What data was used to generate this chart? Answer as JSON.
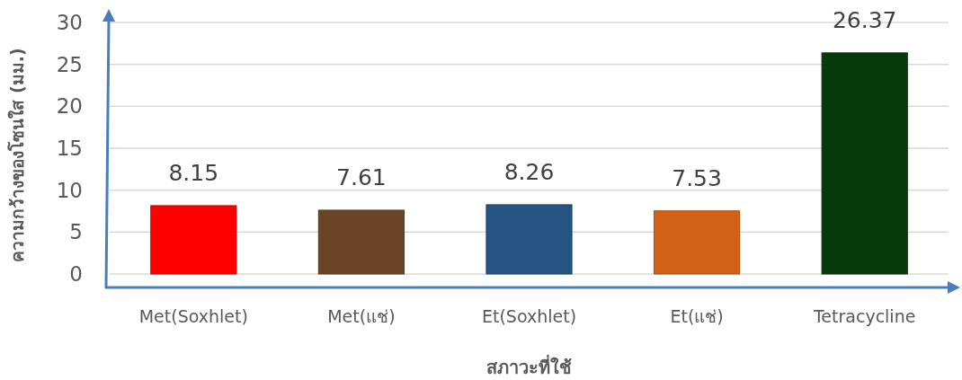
{
  "chart_data": {
    "type": "bar",
    "categories": [
      "Met(Soxhlet)",
      "Met(แช่)",
      "Et(Soxhlet)",
      "Et(แช่)",
      "Tetracycline"
    ],
    "values": [
      8.15,
      7.61,
      8.26,
      7.53,
      26.37
    ],
    "colors": [
      "#fe0000",
      "#6b4428",
      "#255483",
      "#d26218",
      "#073a0a"
    ],
    "xlabel": "สภาวะที่ใช้",
    "ylabel": "ความกว้างของโซนใส (มม.)",
    "ylim": [
      0,
      30
    ],
    "yticks": [
      0,
      5,
      10,
      15,
      20,
      25,
      30
    ],
    "grid": "y",
    "data_labels": true
  }
}
